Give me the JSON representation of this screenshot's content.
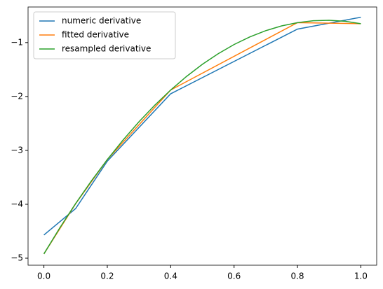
{
  "chart_data": {
    "type": "line",
    "series": [
      {
        "name": "numeric derivative",
        "color": "#1f77b4",
        "x": [
          0,
          0.1,
          0.2,
          0.4,
          0.8,
          1.0
        ],
        "values": [
          -4.57,
          -4.08,
          -3.2,
          -1.95,
          -0.75,
          -0.53
        ]
      },
      {
        "name": "fitted derivative",
        "color": "#ff7f0e",
        "x": [
          0,
          0.1,
          0.2,
          0.4,
          0.8,
          1.0
        ],
        "values": [
          -4.92,
          -3.99,
          -3.17,
          -1.88,
          -0.63,
          -0.65
        ]
      },
      {
        "name": "resampled derivative",
        "color": "#2ca02c",
        "x": [
          0,
          0.05,
          0.1,
          0.15,
          0.2,
          0.25,
          0.3,
          0.35,
          0.4,
          0.45,
          0.5,
          0.55,
          0.6,
          0.65,
          0.7,
          0.75,
          0.8,
          0.85,
          0.9,
          0.95,
          1.0
        ],
        "values": [
          -4.92,
          -4.439,
          -3.987,
          -3.565,
          -3.171,
          -2.806,
          -2.469,
          -2.161,
          -1.88,
          -1.628,
          -1.403,
          -1.206,
          -1.036,
          -0.894,
          -0.779,
          -0.691,
          -0.63,
          -0.595,
          -0.587,
          -0.605,
          -0.65
        ]
      }
    ],
    "xlim": [
      -0.05,
      1.05
    ],
    "ylim": [
      -5.13,
      -0.34
    ],
    "xticks": [
      {
        "value": 0,
        "label": "0.0"
      },
      0.2,
      0.4,
      0.6,
      0.8,
      {
        "value": 1,
        "label": "1.0"
      }
    ],
    "yticks": [
      {
        "value": -5,
        "label": "−5"
      },
      {
        "value": -4,
        "label": "−4"
      },
      {
        "value": -3,
        "label": "−3"
      },
      {
        "value": -2,
        "label": "−2"
      },
      {
        "value": -1,
        "label": "−1"
      }
    ],
    "legend": "upper left"
  }
}
